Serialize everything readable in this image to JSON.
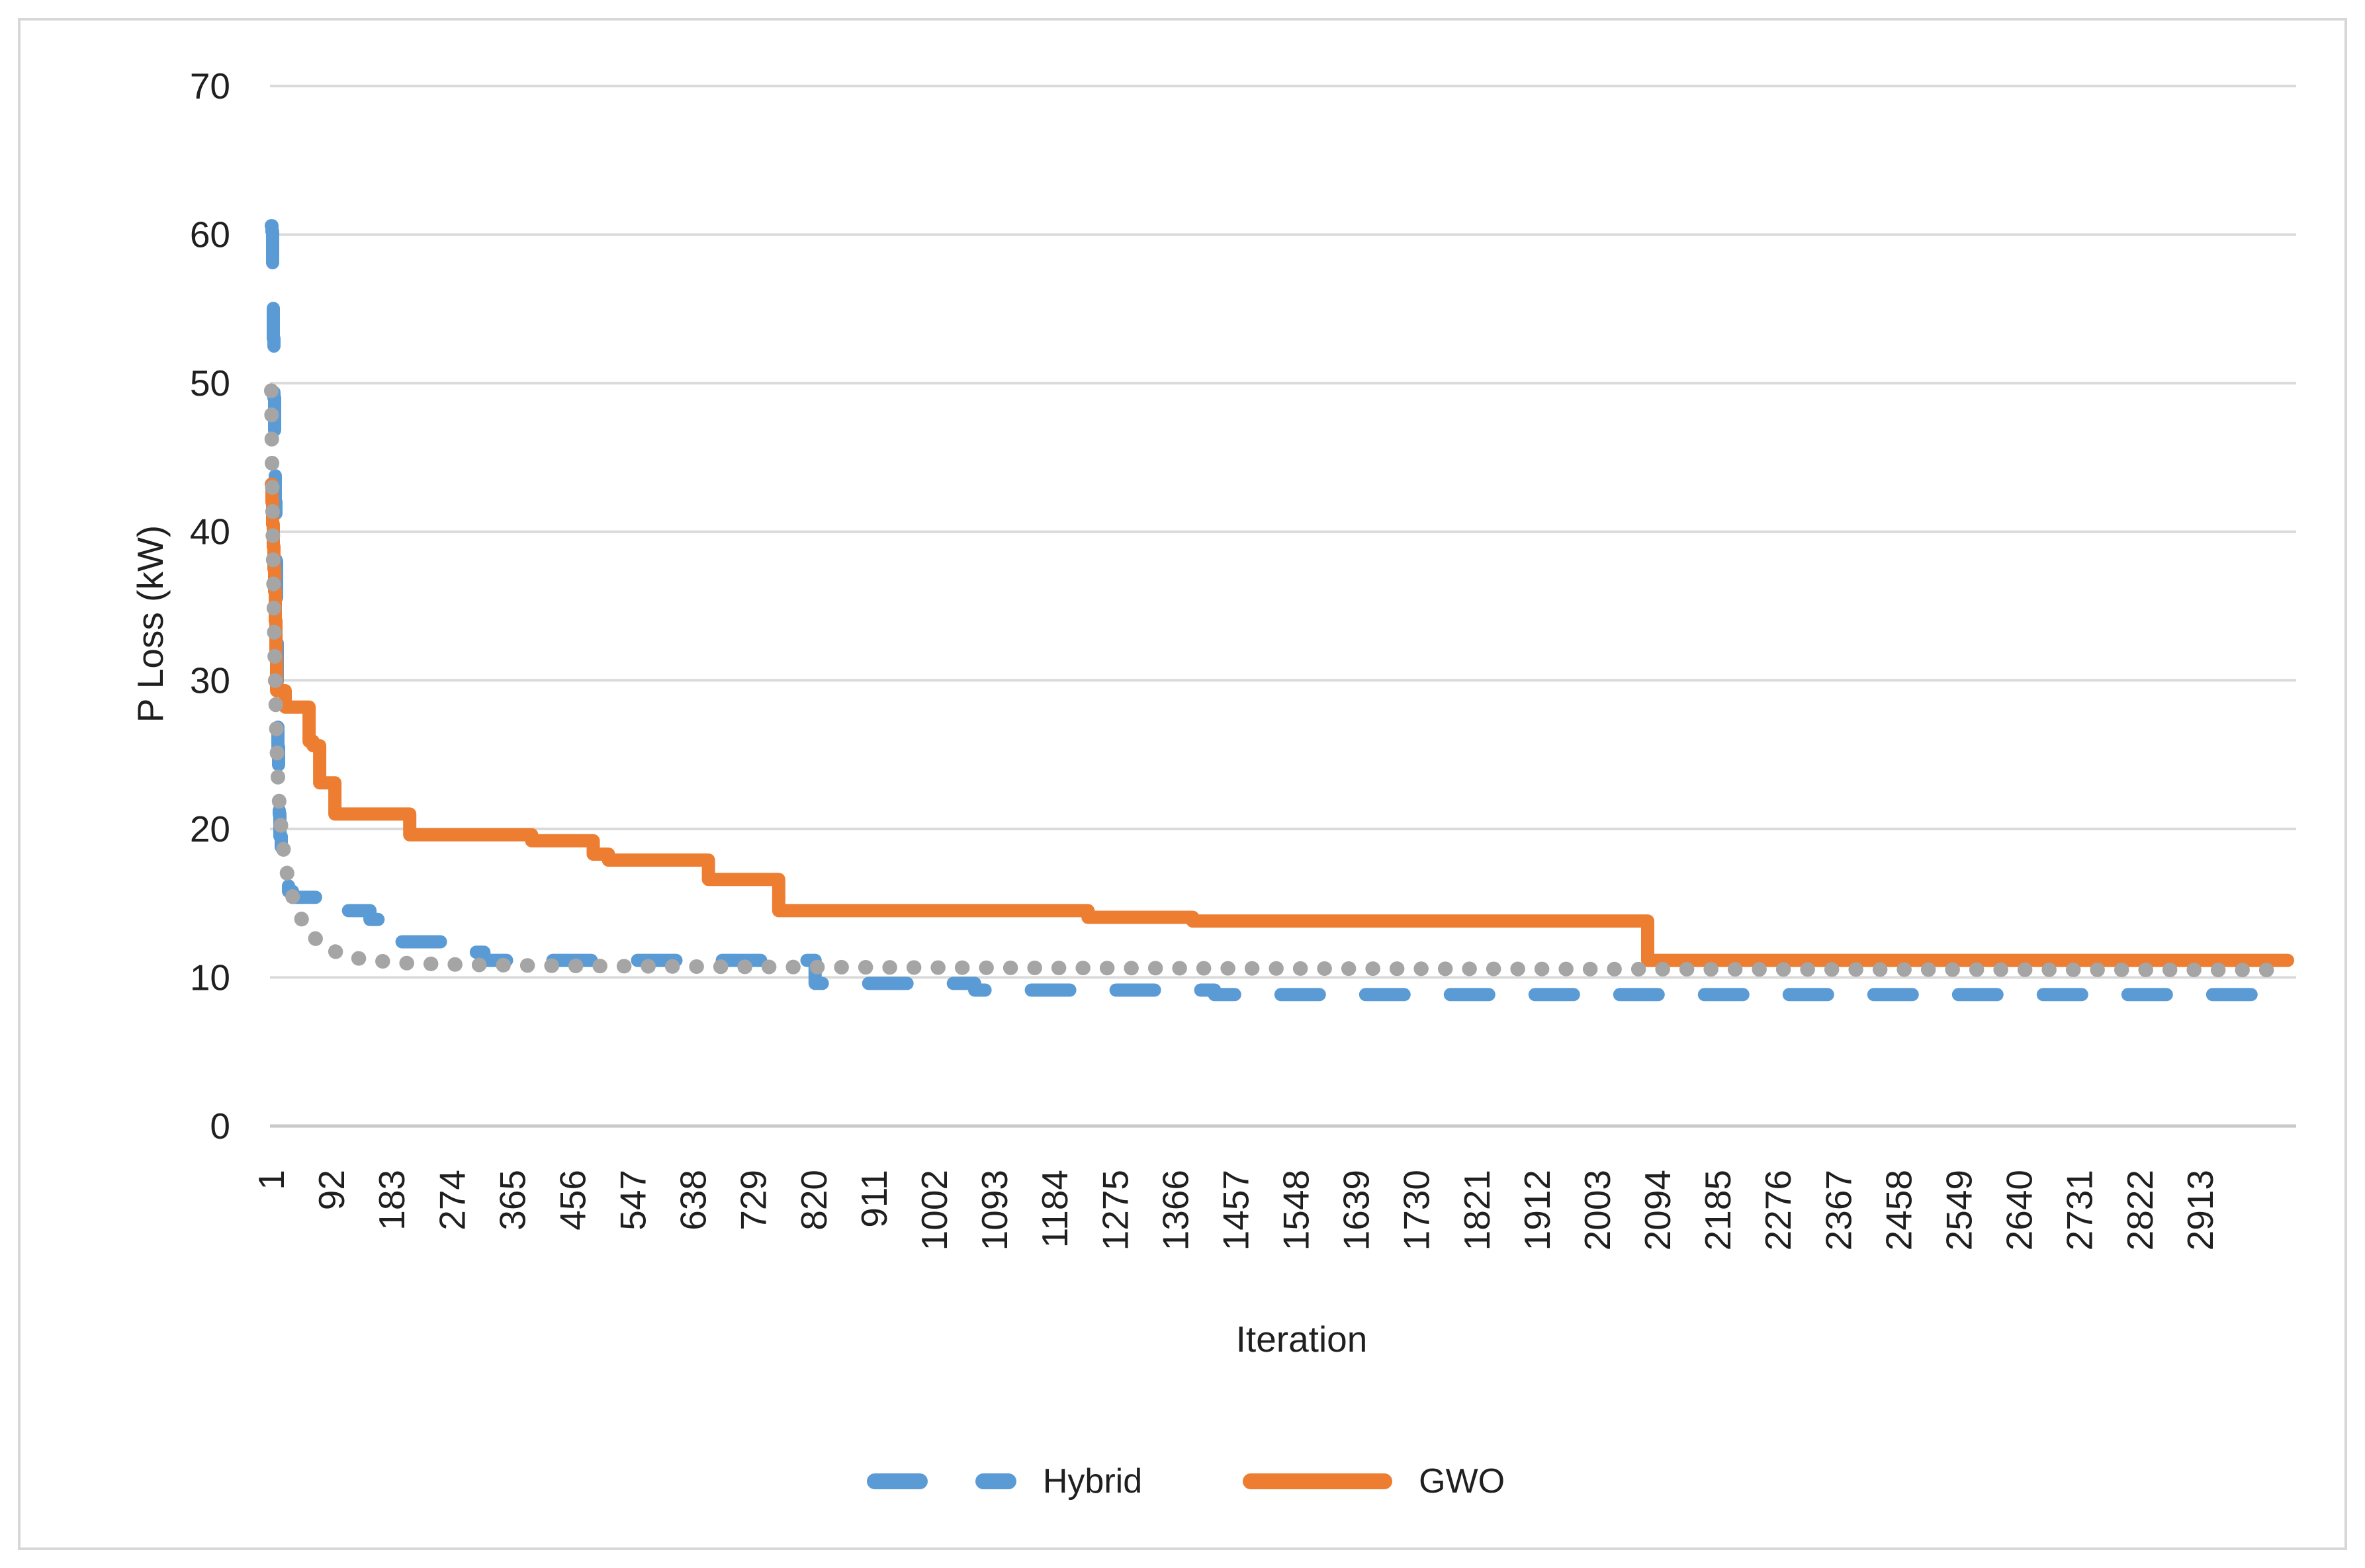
{
  "chart_data": {
    "type": "line",
    "title": "",
    "xlabel": "Iteration",
    "ylabel": "P Loss (kW)",
    "x_axis": {
      "title": "Iteration",
      "tick_labels": [
        "1",
        "92",
        "183",
        "274",
        "365",
        "456",
        "547",
        "638",
        "729",
        "820",
        "911",
        "1002",
        "1093",
        "1184",
        "1275",
        "1366",
        "1457",
        "1548",
        "1639",
        "1730",
        "1821",
        "1912",
        "2003",
        "2094",
        "2185",
        "2276",
        "2367",
        "2458",
        "2549",
        "2640",
        "2731",
        "2822",
        "2913"
      ],
      "tick_step": 91,
      "range": [
        1,
        3050
      ]
    },
    "y_axis": {
      "title": "P Loss (kW)",
      "ticks": [
        0,
        10,
        20,
        30,
        40,
        50,
        60,
        70
      ],
      "range": [
        0,
        70
      ]
    },
    "grid": "horizontal",
    "legend_position": "bottom-center",
    "series": [
      {
        "name": "Hybrid",
        "color": "#5B9BD5",
        "style": "dashed",
        "interpolation": "step",
        "in_legend": true,
        "points": [
          [
            1,
            60.6
          ],
          [
            2,
            60.2
          ],
          [
            3,
            57.0
          ],
          [
            4,
            53.0
          ],
          [
            5,
            49.0
          ],
          [
            6,
            45.5
          ],
          [
            7,
            42.0
          ],
          [
            8,
            38.0
          ],
          [
            9,
            33.0
          ],
          [
            10,
            28.5
          ],
          [
            11,
            25.5
          ],
          [
            12,
            23.0
          ],
          [
            13,
            21.0
          ],
          [
            14,
            19.5
          ],
          [
            16,
            18.2
          ],
          [
            18,
            17.3
          ],
          [
            22,
            16.4
          ],
          [
            27,
            15.8
          ],
          [
            33,
            15.4
          ],
          [
            76,
            15.4
          ],
          [
            80,
            14.5
          ],
          [
            145,
            14.5
          ],
          [
            150,
            13.9
          ],
          [
            192,
            13.9
          ],
          [
            197,
            12.4
          ],
          [
            255,
            12.4
          ],
          [
            260,
            11.7
          ],
          [
            318,
            11.7
          ],
          [
            322,
            11.15
          ],
          [
            818,
            11.15
          ],
          [
            822,
            9.6
          ],
          [
            1058,
            9.6
          ],
          [
            1063,
            9.15
          ],
          [
            1420,
            9.15
          ],
          [
            1425,
            8.85
          ],
          [
            3040,
            8.85
          ]
        ]
      },
      {
        "name": "GWO",
        "color": "#ED7D31",
        "style": "solid",
        "interpolation": "step",
        "in_legend": true,
        "points": [
          [
            1,
            43.2
          ],
          [
            2,
            42.0
          ],
          [
            3,
            40.5
          ],
          [
            4,
            39.0
          ],
          [
            5,
            37.5
          ],
          [
            6,
            36.0
          ],
          [
            7,
            34.0
          ],
          [
            8,
            31.5
          ],
          [
            9,
            29.3
          ],
          [
            20,
            29.3
          ],
          [
            22,
            28.2
          ],
          [
            56,
            28.2
          ],
          [
            58,
            25.9
          ],
          [
            64,
            25.6
          ],
          [
            74,
            23.1
          ],
          [
            95,
            23.1
          ],
          [
            97,
            21.0
          ],
          [
            207,
            21.0
          ],
          [
            210,
            19.6
          ],
          [
            390,
            19.6
          ],
          [
            394,
            19.2
          ],
          [
            483,
            19.2
          ],
          [
            487,
            18.3
          ],
          [
            510,
            17.9
          ],
          [
            657,
            17.9
          ],
          [
            661,
            16.6
          ],
          [
            763,
            16.6
          ],
          [
            767,
            14.5
          ],
          [
            1230,
            14.5
          ],
          [
            1234,
            14.05
          ],
          [
            1388,
            14.05
          ],
          [
            1392,
            13.8
          ],
          [
            2075,
            13.8
          ],
          [
            2079,
            11.15
          ],
          [
            3045,
            11.15
          ]
        ]
      },
      {
        "name": "",
        "color": "#A5A5A5",
        "style": "dotted",
        "interpolation": "linear",
        "in_legend": false,
        "points": [
          [
            1,
            49.5
          ],
          [
            2,
            45.0
          ],
          [
            3,
            41.0
          ],
          [
            4,
            37.5
          ],
          [
            5,
            34.5
          ],
          [
            6,
            32.0
          ],
          [
            7,
            29.8
          ],
          [
            8,
            27.8
          ],
          [
            9,
            26.0
          ],
          [
            10,
            24.5
          ],
          [
            12,
            22.5
          ],
          [
            14,
            21.0
          ],
          [
            17,
            19.5
          ],
          [
            20,
            18.4
          ],
          [
            24,
            17.2
          ],
          [
            28,
            16.3
          ],
          [
            34,
            15.3
          ],
          [
            40,
            14.6
          ],
          [
            48,
            13.8
          ],
          [
            58,
            13.1
          ],
          [
            70,
            12.5
          ],
          [
            85,
            12.0
          ],
          [
            105,
            11.6
          ],
          [
            130,
            11.3
          ],
          [
            165,
            11.1
          ],
          [
            210,
            10.95
          ],
          [
            300,
            10.85
          ],
          [
            450,
            10.78
          ],
          [
            700,
            10.72
          ],
          [
            1100,
            10.65
          ],
          [
            1600,
            10.6
          ],
          [
            2200,
            10.55
          ],
          [
            3045,
            10.5
          ]
        ]
      }
    ]
  },
  "colors": {
    "grid": "#DADADA",
    "axis_line": "#C9C9C9",
    "text": "#1F1F1F",
    "card_border": "#D7D7D7",
    "background": "#FFFFFF"
  }
}
